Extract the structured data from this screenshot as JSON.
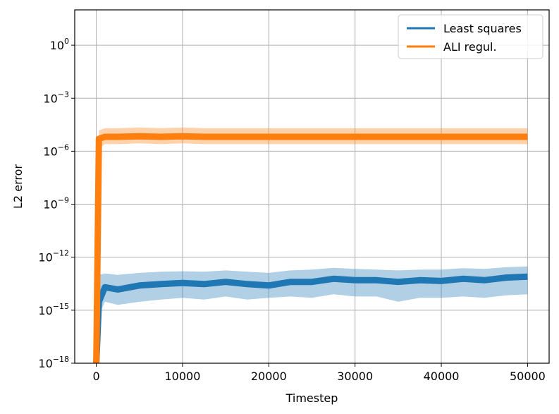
{
  "chart_data": {
    "type": "line",
    "title": "",
    "xlabel": "Timestep",
    "ylabel": "L2 error",
    "yscale": "log",
    "xlim": [
      -2500,
      52500
    ],
    "ylim": [
      1e-18,
      100.0
    ],
    "xticks": [
      {
        "value": 0,
        "label": "0"
      },
      {
        "value": 10000,
        "label": "10000"
      },
      {
        "value": 20000,
        "label": "20000"
      },
      {
        "value": 30000,
        "label": "30000"
      },
      {
        "value": 40000,
        "label": "40000"
      },
      {
        "value": 50000,
        "label": "50000"
      }
    ],
    "yticks": [
      {
        "exp": 0,
        "base": "10",
        "sup": "0"
      },
      {
        "exp": -3,
        "base": "10",
        "sup": "−3"
      },
      {
        "exp": -6,
        "base": "10",
        "sup": "−6"
      },
      {
        "exp": -9,
        "base": "10",
        "sup": "−9"
      },
      {
        "exp": -12,
        "base": "10",
        "sup": "−12"
      },
      {
        "exp": -15,
        "base": "10",
        "sup": "−15"
      },
      {
        "exp": -18,
        "base": "10",
        "sup": "−18"
      }
    ],
    "grid": true,
    "legend_position": "top-right",
    "series": [
      {
        "name": "Least squares",
        "color": "#1f77b4",
        "x": [
          0,
          300,
          1000,
          2500,
          5000,
          7500,
          10000,
          12500,
          15000,
          17500,
          20000,
          22500,
          25000,
          27500,
          30000,
          32500,
          35000,
          37500,
          40000,
          42500,
          45000,
          47500,
          50000
        ],
        "y": [
          1e-18,
          3e-15,
          2e-14,
          1.5e-14,
          2.5e-14,
          3e-14,
          3.5e-14,
          3e-14,
          4e-14,
          3e-14,
          2.5e-14,
          4e-14,
          4e-14,
          6e-14,
          5e-14,
          5e-14,
          4e-14,
          5e-14,
          4.5e-14,
          6e-14,
          5e-14,
          7e-14,
          8e-14
        ],
        "band_lower": [
          1e-18,
          5e-16,
          3e-15,
          2e-15,
          3e-15,
          4e-15,
          5e-15,
          4e-15,
          6e-15,
          4e-15,
          5e-15,
          6e-15,
          5e-15,
          8e-15,
          6e-15,
          6e-15,
          3e-15,
          5e-15,
          5e-15,
          6e-15,
          5e-15,
          7e-15,
          8e-15
        ],
        "band_upper": [
          1e-18,
          1e-13,
          1.2e-13,
          1e-13,
          1.3e-13,
          1.5e-13,
          1.6e-13,
          1.5e-13,
          1.8e-13,
          1.5e-13,
          1.3e-13,
          1.8e-13,
          2e-13,
          2.5e-13,
          2.2e-13,
          2e-13,
          1.8e-13,
          2e-13,
          2e-13,
          2.4e-13,
          2.2e-13,
          2.7e-13,
          3e-13
        ]
      },
      {
        "name": "ALI regul.",
        "color": "#ff7f0e",
        "x": [
          0,
          300,
          1000,
          2500,
          5000,
          7500,
          10000,
          12500,
          15000,
          17500,
          20000,
          22500,
          25000,
          27500,
          30000,
          32500,
          35000,
          37500,
          40000,
          42500,
          45000,
          47500,
          50000
        ],
        "y": [
          1e-18,
          5e-06,
          6.5e-06,
          6.5e-06,
          7e-06,
          6.5e-06,
          7e-06,
          6.5e-06,
          6.5e-06,
          6.5e-06,
          6.5e-06,
          6.5e-06,
          6.5e-06,
          6.5e-06,
          6.5e-06,
          6.5e-06,
          6.5e-06,
          6.5e-06,
          6.5e-06,
          6.5e-06,
          6.5e-06,
          6.5e-06,
          6.5e-06
        ],
        "band_lower": [
          1e-18,
          1.5e-06,
          2.5e-06,
          2.5e-06,
          2.8e-06,
          2.5e-06,
          2.8e-06,
          2.5e-06,
          2.5e-06,
          2.5e-06,
          2.5e-06,
          2.5e-06,
          2.5e-06,
          2.5e-06,
          2.5e-06,
          2.5e-06,
          2.5e-06,
          2.5e-06,
          2.5e-06,
          2.5e-06,
          2.5e-06,
          2.5e-06,
          2.5e-06
        ],
        "band_upper": [
          1e-18,
          1.5e-05,
          2e-05,
          2e-05,
          2.2e-05,
          2e-05,
          2.2e-05,
          2e-05,
          2e-05,
          2e-05,
          2e-05,
          2e-05,
          2e-05,
          2e-05,
          2e-05,
          2e-05,
          2e-05,
          2e-05,
          2e-05,
          2e-05,
          2e-05,
          2e-05,
          2e-05
        ]
      }
    ]
  }
}
